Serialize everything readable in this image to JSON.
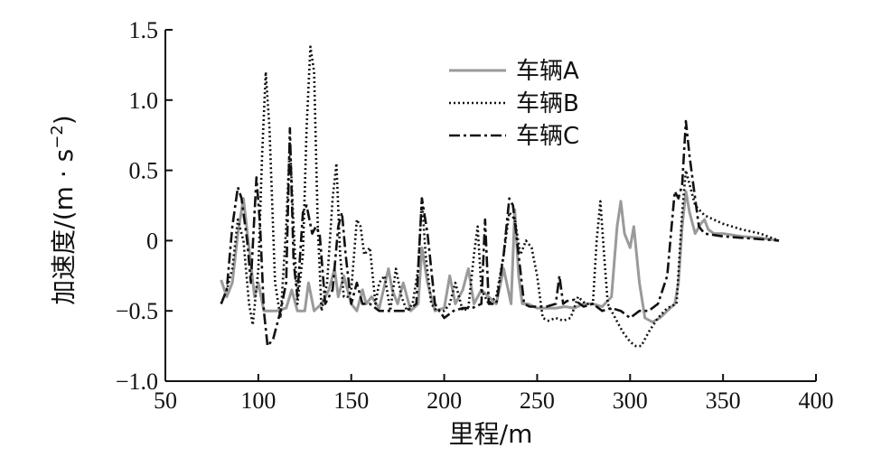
{
  "chart_data": {
    "type": "line",
    "xlabel": "里程/m",
    "ylabel_main": "加速度/(m · s",
    "ylabel_sup": "−2",
    "ylabel_close": ")",
    "xlim": [
      50,
      400
    ],
    "ylim": [
      -1.0,
      1.5
    ],
    "xticks": [
      50,
      100,
      150,
      200,
      250,
      300,
      350,
      400
    ],
    "xtick_labels": [
      "50",
      "100",
      "150",
      "200",
      "250",
      "300",
      "350",
      "400"
    ],
    "yticks": [
      -1.0,
      -0.5,
      0,
      0.5,
      1.0,
      1.5
    ],
    "ytick_labels": [
      "−1.0",
      "−0.5",
      "0",
      "0.5",
      "1.0",
      "1.5"
    ],
    "grid": false,
    "legend_position": "top-center",
    "series": [
      {
        "name": "车辆A",
        "style": "solid",
        "color": "#9a9a9a",
        "x": [
          80,
          83,
          86,
          89,
          92,
          95,
          98,
          100,
          103,
          106,
          110,
          115,
          118,
          121,
          125,
          127,
          130,
          134,
          138,
          141,
          143,
          146,
          150,
          153,
          156,
          158,
          161,
          165,
          170,
          172,
          175,
          178,
          182,
          186,
          188,
          191,
          195,
          200,
          203,
          206,
          210,
          213,
          216,
          220,
          224,
          228,
          232,
          236,
          238,
          240,
          242,
          245,
          250,
          255,
          260,
          265,
          270,
          275,
          280,
          285,
          290,
          293,
          295,
          297,
          300,
          302,
          305,
          308,
          312,
          316,
          320,
          324,
          326,
          328,
          330,
          332,
          335,
          338,
          340,
          342,
          345,
          350,
          360,
          370,
          380
        ],
        "y": [
          -0.28,
          -0.4,
          -0.3,
          0.05,
          0.3,
          -0.05,
          -0.4,
          -0.3,
          -0.5,
          -0.5,
          -0.5,
          -0.48,
          -0.35,
          -0.5,
          -0.5,
          -0.3,
          -0.5,
          -0.45,
          -0.35,
          -0.2,
          -0.4,
          -0.25,
          -0.45,
          -0.5,
          -0.35,
          -0.45,
          -0.4,
          -0.48,
          -0.2,
          -0.35,
          -0.45,
          -0.3,
          -0.5,
          -0.45,
          -0.05,
          -0.3,
          -0.5,
          -0.48,
          -0.25,
          -0.45,
          -0.35,
          -0.2,
          -0.45,
          -0.35,
          -0.4,
          -0.45,
          -0.2,
          -0.45,
          0.22,
          -0.25,
          -0.45,
          -0.45,
          -0.48,
          -0.48,
          -0.48,
          -0.47,
          -0.48,
          -0.45,
          -0.45,
          -0.47,
          -0.4,
          0.1,
          0.28,
          0.05,
          -0.05,
          0.1,
          -0.3,
          -0.55,
          -0.58,
          -0.55,
          -0.5,
          -0.45,
          -0.3,
          0.1,
          0.35,
          0.2,
          0.05,
          0.12,
          0.15,
          0.08,
          0.05,
          0.05,
          0.03,
          0.02,
          0.0
        ]
      },
      {
        "name": "车辆B",
        "style": "dotted",
        "color": "#111111",
        "x": [
          80,
          83,
          86,
          89,
          92,
          95,
          97,
          100,
          102,
          104,
          106,
          109,
          112,
          115,
          117,
          119,
          121,
          124,
          126,
          128,
          130,
          132,
          134,
          137,
          140,
          142,
          144,
          146,
          148,
          150,
          153,
          155,
          157,
          160,
          163,
          165,
          168,
          171,
          174,
          177,
          180,
          183,
          186,
          188,
          190,
          193,
          196,
          200,
          203,
          206,
          210,
          213,
          216,
          218,
          220,
          224,
          228,
          232,
          235,
          238,
          241,
          244,
          247,
          250,
          253,
          256,
          260,
          264,
          268,
          272,
          276,
          280,
          282,
          284,
          286,
          288,
          292,
          296,
          300,
          303,
          306,
          310,
          315,
          320,
          325,
          328,
          330,
          332,
          335,
          340,
          345,
          350,
          360,
          370,
          380
        ],
        "y": [
          -0.45,
          -0.35,
          -0.2,
          0.15,
          0.0,
          -0.45,
          -0.6,
          -0.2,
          0.6,
          1.2,
          0.8,
          -0.3,
          -0.55,
          0.1,
          0.7,
          0.1,
          -0.45,
          -0.1,
          0.8,
          1.38,
          1.2,
          0.1,
          -0.5,
          -0.3,
          0.3,
          0.55,
          -0.1,
          -0.4,
          -0.4,
          -0.35,
          0.15,
          0.1,
          -0.1,
          -0.05,
          -0.45,
          -0.3,
          -0.25,
          -0.5,
          -0.2,
          -0.4,
          -0.5,
          -0.45,
          -0.2,
          0.3,
          -0.1,
          -0.45,
          -0.5,
          -0.5,
          -0.45,
          -0.3,
          -0.5,
          -0.48,
          -0.1,
          0.1,
          -0.35,
          -0.45,
          -0.4,
          -0.1,
          0.2,
          0.15,
          -0.1,
          0.0,
          -0.05,
          -0.25,
          -0.55,
          -0.57,
          -0.55,
          -0.57,
          -0.55,
          -0.4,
          -0.45,
          -0.45,
          0.0,
          0.28,
          -0.1,
          -0.45,
          -0.55,
          -0.65,
          -0.72,
          -0.75,
          -0.75,
          -0.65,
          -0.55,
          -0.48,
          -0.45,
          0.2,
          0.5,
          0.4,
          0.25,
          0.18,
          0.15,
          0.12,
          0.08,
          0.05,
          0.0
        ]
      },
      {
        "name": "车辆C",
        "style": "dashdot",
        "color": "#111111",
        "x": [
          80,
          83,
          86,
          89,
          91,
          94,
          96,
          98,
          99,
          101,
          103,
          105,
          108,
          112,
          115,
          117,
          119,
          121,
          124,
          126,
          129,
          131,
          133,
          136,
          140,
          143,
          145,
          147,
          150,
          153,
          156,
          160,
          165,
          170,
          175,
          180,
          185,
          188,
          191,
          195,
          200,
          205,
          210,
          215,
          220,
          222,
          224,
          228,
          232,
          235,
          237,
          240,
          243,
          246,
          250,
          255,
          260,
          262,
          264,
          266,
          270,
          275,
          280,
          285,
          290,
          295,
          300,
          305,
          310,
          315,
          320,
          322,
          324,
          326,
          328,
          330,
          332,
          334,
          337,
          340,
          345,
          350,
          360,
          370,
          380
        ],
        "y": [
          -0.45,
          -0.35,
          0.1,
          0.38,
          0.3,
          0.0,
          -0.3,
          0.2,
          0.45,
          0.1,
          -0.5,
          -0.75,
          -0.7,
          -0.5,
          -0.3,
          0.8,
          -0.15,
          -0.4,
          0.2,
          0.25,
          0.05,
          0.1,
          0.05,
          -0.45,
          -0.35,
          0.1,
          0.2,
          -0.1,
          -0.45,
          -0.3,
          -0.45,
          -0.45,
          -0.5,
          -0.5,
          -0.5,
          -0.5,
          -0.45,
          0.3,
          0.05,
          -0.45,
          -0.55,
          -0.5,
          -0.48,
          -0.48,
          -0.45,
          0.15,
          -0.45,
          -0.45,
          -0.1,
          0.3,
          0.25,
          -0.1,
          -0.45,
          -0.47,
          -0.47,
          -0.47,
          -0.45,
          -0.25,
          -0.45,
          -0.43,
          -0.42,
          -0.47,
          -0.45,
          -0.5,
          -0.48,
          -0.5,
          -0.55,
          -0.5,
          -0.5,
          -0.45,
          -0.25,
          0.05,
          0.35,
          0.3,
          0.4,
          0.85,
          0.6,
          0.4,
          0.1,
          0.05,
          0.04,
          0.03,
          0.02,
          0.01,
          0.0
        ]
      }
    ]
  }
}
